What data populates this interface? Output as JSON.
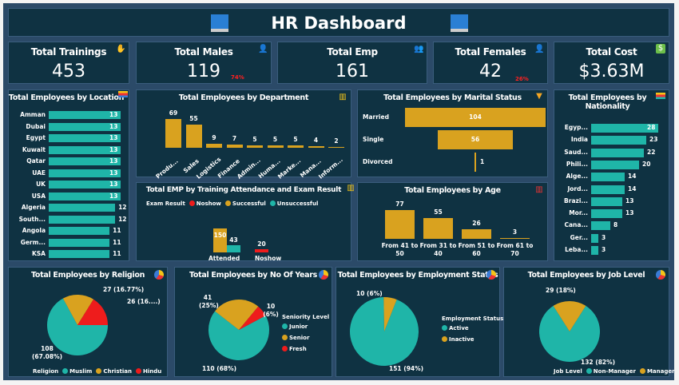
{
  "header": {
    "title": "HR Dashboard",
    "icon": "computer-dashboard-icon"
  },
  "colors": {
    "teal": "#1fb5a8",
    "gold": "#d9a21f",
    "red": "#ee1c1c",
    "panel": "#0f3242"
  },
  "kpis": [
    {
      "label": "Total Trainings",
      "value": "453",
      "icon": "training-icon"
    },
    {
      "label": "Total Males",
      "value": "119",
      "pct": "74%",
      "icon": "male-icon"
    },
    {
      "label": "Total Emp",
      "value": "161",
      "icon": "team-icon"
    },
    {
      "label": "Total Females",
      "value": "42",
      "pct": "26%",
      "icon": "female-icon"
    },
    {
      "label": "Total Cost",
      "value": "$3.63M",
      "icon": "money-bag-icon"
    }
  ],
  "chart_data": [
    {
      "id": "location",
      "type": "bar",
      "orientation": "horizontal",
      "title": "Total Employees by Location",
      "categories": [
        "Amman",
        "Dubai",
        "Egypt",
        "Kuwait",
        "Qatar",
        "UAE",
        "UK",
        "USA",
        "Algeria",
        "South...",
        "Angola",
        "Germ...",
        "KSA"
      ],
      "values": [
        13,
        13,
        13,
        13,
        13,
        13,
        13,
        13,
        12,
        12,
        11,
        11,
        11
      ],
      "color": "#1fb5a8"
    },
    {
      "id": "department",
      "type": "bar",
      "title": "Total Employees by Department",
      "categories": [
        "Produ...",
        "Sales",
        "Logistics",
        "Finance",
        "Admin...",
        "Huma...",
        "Marke...",
        "Mana...",
        "Inform..."
      ],
      "values": [
        69,
        55,
        9,
        7,
        5,
        5,
        5,
        4,
        2
      ],
      "color": "#d9a21f"
    },
    {
      "id": "training",
      "type": "bar",
      "title": "Total EMP by Training Attendance and Exam Result",
      "legend_title": "Exam Result",
      "legend": [
        "Noshow",
        "Successful",
        "Unsuccessful"
      ],
      "categories": [
        "Attended",
        "Noshow"
      ],
      "series": [
        {
          "name": "Successful",
          "values": [
            150,
            null
          ],
          "color": "#d9a21f"
        },
        {
          "name": "Unsuccessful",
          "values": [
            43,
            null
          ],
          "color": "#1fb5a8"
        },
        {
          "name": "Noshow",
          "values": [
            null,
            20
          ],
          "color": "#ee1c1c"
        }
      ]
    },
    {
      "id": "marital",
      "type": "bar",
      "subtype": "funnel",
      "title": "Total Employees by Marital Status",
      "categories": [
        "Married",
        "Single",
        "Divorced"
      ],
      "values": [
        104,
        56,
        1
      ],
      "color": "#d9a21f"
    },
    {
      "id": "age",
      "type": "bar",
      "title": "Total Employees by Age",
      "categories": [
        "From 41 to 50",
        "From 31 to 40",
        "From 51 to 60",
        "From 61 to 70"
      ],
      "values": [
        77,
        55,
        26,
        3
      ],
      "color": "#d9a21f"
    },
    {
      "id": "nationality",
      "type": "bar",
      "orientation": "horizontal",
      "title": "Total Employees by Nationality",
      "categories": [
        "Egyp...",
        "India",
        "Saud...",
        "Phili...",
        "Alge...",
        "Jord...",
        "Brazi...",
        "Mor...",
        "Cana...",
        "Ger...",
        "Leba..."
      ],
      "values": [
        28,
        23,
        22,
        20,
        14,
        14,
        13,
        13,
        8,
        3,
        3
      ],
      "color": "#1fb5a8"
    },
    {
      "id": "religion",
      "type": "pie",
      "title": "Total Employees by Religion",
      "legend_title": "Religion",
      "categories": [
        "Muslim",
        "Christian",
        "Hindu"
      ],
      "values": [
        108,
        27,
        26
      ],
      "labels": [
        "108 (67.08%)",
        "27 (16.77%)",
        "26 (16....)"
      ],
      "colors": [
        "#1fb5a8",
        "#d9a21f",
        "#ee1c1c"
      ]
    },
    {
      "id": "years",
      "type": "pie",
      "title": "Total Employees by No Of Years",
      "legend_title": "Seniority Level",
      "categories": [
        "Junior",
        "Senior",
        "Fresh"
      ],
      "values": [
        110,
        41,
        10
      ],
      "labels": [
        "110 (68%)",
        "41 (25%)",
        "10 (6%)"
      ],
      "colors": [
        "#1fb5a8",
        "#d9a21f",
        "#ee1c1c"
      ]
    },
    {
      "id": "empstatus",
      "type": "pie",
      "title": "Total Employees by Employment Status",
      "legend_title": "Employment Status",
      "categories": [
        "Active",
        "Inactive"
      ],
      "values": [
        151,
        10
      ],
      "labels": [
        "151 (94%)",
        "10 (6%)"
      ],
      "colors": [
        "#1fb5a8",
        "#d9a21f"
      ]
    },
    {
      "id": "joblevel",
      "type": "pie",
      "title": "Total Employees by Job Level",
      "legend_title": "Job Level",
      "categories": [
        "Non-Manager",
        "Manager"
      ],
      "values": [
        132,
        29
      ],
      "labels": [
        "132 (82%)",
        "29 (18%)"
      ],
      "colors": [
        "#1fb5a8",
        "#d9a21f"
      ]
    }
  ]
}
